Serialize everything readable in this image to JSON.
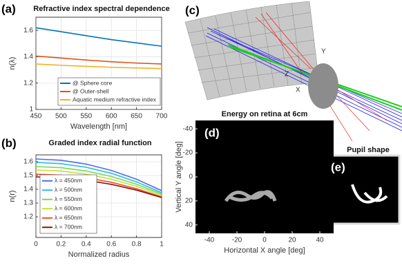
{
  "panel_labels": [
    "(a)",
    "(b)",
    "(c)",
    "(d)",
    "(e)"
  ],
  "chart_data": [
    {
      "type": "line",
      "title": "Refractive index spectral dependence",
      "x_label": "Wavelength [nm]",
      "y_label": "n(λ)",
      "x": [
        450,
        500,
        550,
        600,
        650,
        700
      ],
      "series": [
        {
          "name": "@ Sphere core",
          "color": "#0072bd",
          "values": [
            1.62,
            1.59,
            1.56,
            1.53,
            1.505,
            1.48
          ]
        },
        {
          "name": "@ Outer-shell",
          "color": "#d95319",
          "values": [
            1.405,
            1.39,
            1.375,
            1.362,
            1.352,
            1.345
          ]
        },
        {
          "name": "Aquatic medium refractive index",
          "color": "#edb120",
          "values": [
            1.345,
            1.335,
            1.327,
            1.32,
            1.315,
            1.31
          ]
        }
      ],
      "xlim": [
        450,
        700
      ],
      "xticks": [
        450,
        500,
        550,
        600,
        650,
        700
      ],
      "ylim": [
        1,
        1.7
      ],
      "yticks": [
        1,
        1.2,
        1.4,
        1.6
      ],
      "grid": true,
      "legend": "lower right"
    },
    {
      "type": "line",
      "title": "Graded index radial function",
      "x_label": "Normalized radius",
      "y_label": "n(r)",
      "x": [
        0,
        0.2,
        0.4,
        0.6,
        0.8,
        1
      ],
      "series": [
        {
          "name": "λ = 450nm",
          "color": "#4a6cf0",
          "values": [
            1.62,
            1.611,
            1.583,
            1.537,
            1.473,
            1.39
          ]
        },
        {
          "name": "λ = 500nm",
          "color": "#2ab8ee",
          "values": [
            1.595,
            1.586,
            1.56,
            1.516,
            1.454,
            1.375
          ]
        },
        {
          "name": "λ = 550nm",
          "color": "#6edc50",
          "values": [
            1.565,
            1.557,
            1.533,
            1.493,
            1.437,
            1.365
          ]
        },
        {
          "name": "λ = 600nm",
          "color": "#c6e030",
          "values": [
            1.54,
            1.533,
            1.51,
            1.473,
            1.422,
            1.355
          ]
        },
        {
          "name": "λ = 650nm",
          "color": "#e8502a",
          "values": [
            1.51,
            1.503,
            1.484,
            1.451,
            1.404,
            1.345
          ]
        },
        {
          "name": "λ = 700nm",
          "color": "#8b1010",
          "values": [
            1.49,
            1.484,
            1.466,
            1.436,
            1.394,
            1.34
          ]
        }
      ],
      "xlim": [
        0,
        1
      ],
      "xticks": [
        0,
        0.2,
        0.4,
        0.6,
        0.8,
        1
      ],
      "ylim": [
        1.05,
        1.65
      ],
      "yticks": [
        1.2,
        1.3,
        1.4,
        1.5,
        1.6
      ],
      "grid": true,
      "legend": "lower left"
    },
    {
      "type": "image",
      "title": "Energy on retina at 6cm",
      "x_label": "Horizontal X angle [deg]",
      "y_label": "Vertical Y angle [deg]",
      "xlim": [
        -50,
        50
      ],
      "xticks": [
        -40,
        -20,
        0,
        20,
        40
      ],
      "ylim": [
        -47,
        47
      ],
      "yticks": [
        -40,
        -20,
        0,
        20,
        40
      ]
    }
  ],
  "diagram": {
    "axis_labels": [
      "Y",
      "Z",
      "X"
    ]
  },
  "pupil": {
    "title": "Pupil shape"
  }
}
